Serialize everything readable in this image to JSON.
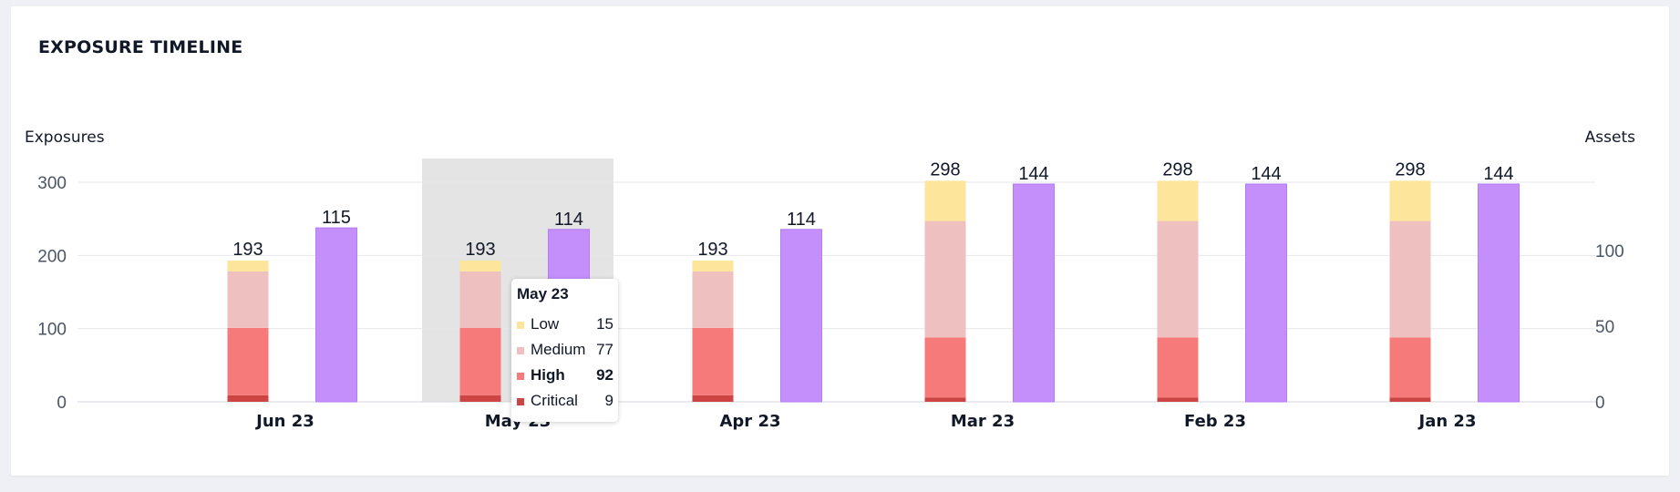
{
  "widget": {
    "title": "EXPOSURE TIMELINE"
  },
  "chart_data": {
    "type": "bar",
    "title": "",
    "ylabel": "Exposures",
    "y2label": "Assets",
    "ylim": [
      0,
      330
    ],
    "yticks": [
      0,
      100,
      200,
      300
    ],
    "y2lim": [
      0,
      160
    ],
    "y2ticks": [
      0,
      50,
      100
    ],
    "categories": [
      "Jun 23",
      "May 23",
      "Apr 23",
      "Mar 23",
      "Feb 23",
      "Jan 23"
    ],
    "stacked_series": [
      {
        "name": "Critical",
        "color": "#cc4444",
        "values": [
          9,
          9,
          9,
          6,
          6,
          6
        ]
      },
      {
        "name": "High",
        "color": "#f67a7a",
        "values": [
          92,
          92,
          92,
          82,
          82,
          82
        ]
      },
      {
        "name": "Medium",
        "color": "#efc0c0",
        "values": [
          77,
          77,
          77,
          159,
          159,
          159
        ]
      },
      {
        "name": "Low",
        "color": "#fde59c",
        "values": [
          15,
          15,
          15,
          55,
          55,
          55
        ]
      }
    ],
    "exposure_totals": [
      193,
      193,
      193,
      298,
      298,
      298
    ],
    "assets_series": {
      "name": "Assets",
      "color": "#c48ffb",
      "values": [
        115,
        114,
        114,
        144,
        144,
        144
      ]
    },
    "highlighted_category": "May 23",
    "grid": true
  },
  "tooltip": {
    "title": "May 23",
    "rows": [
      {
        "label": "Low",
        "value": "15",
        "color": "#fde59c"
      },
      {
        "label": "Medium",
        "value": "77",
        "color": "#efc0c0"
      },
      {
        "label": "High",
        "value": "92",
        "color": "#f67a7a",
        "bold": true
      },
      {
        "label": "Critical",
        "value": "9",
        "color": "#cc4444"
      }
    ]
  }
}
